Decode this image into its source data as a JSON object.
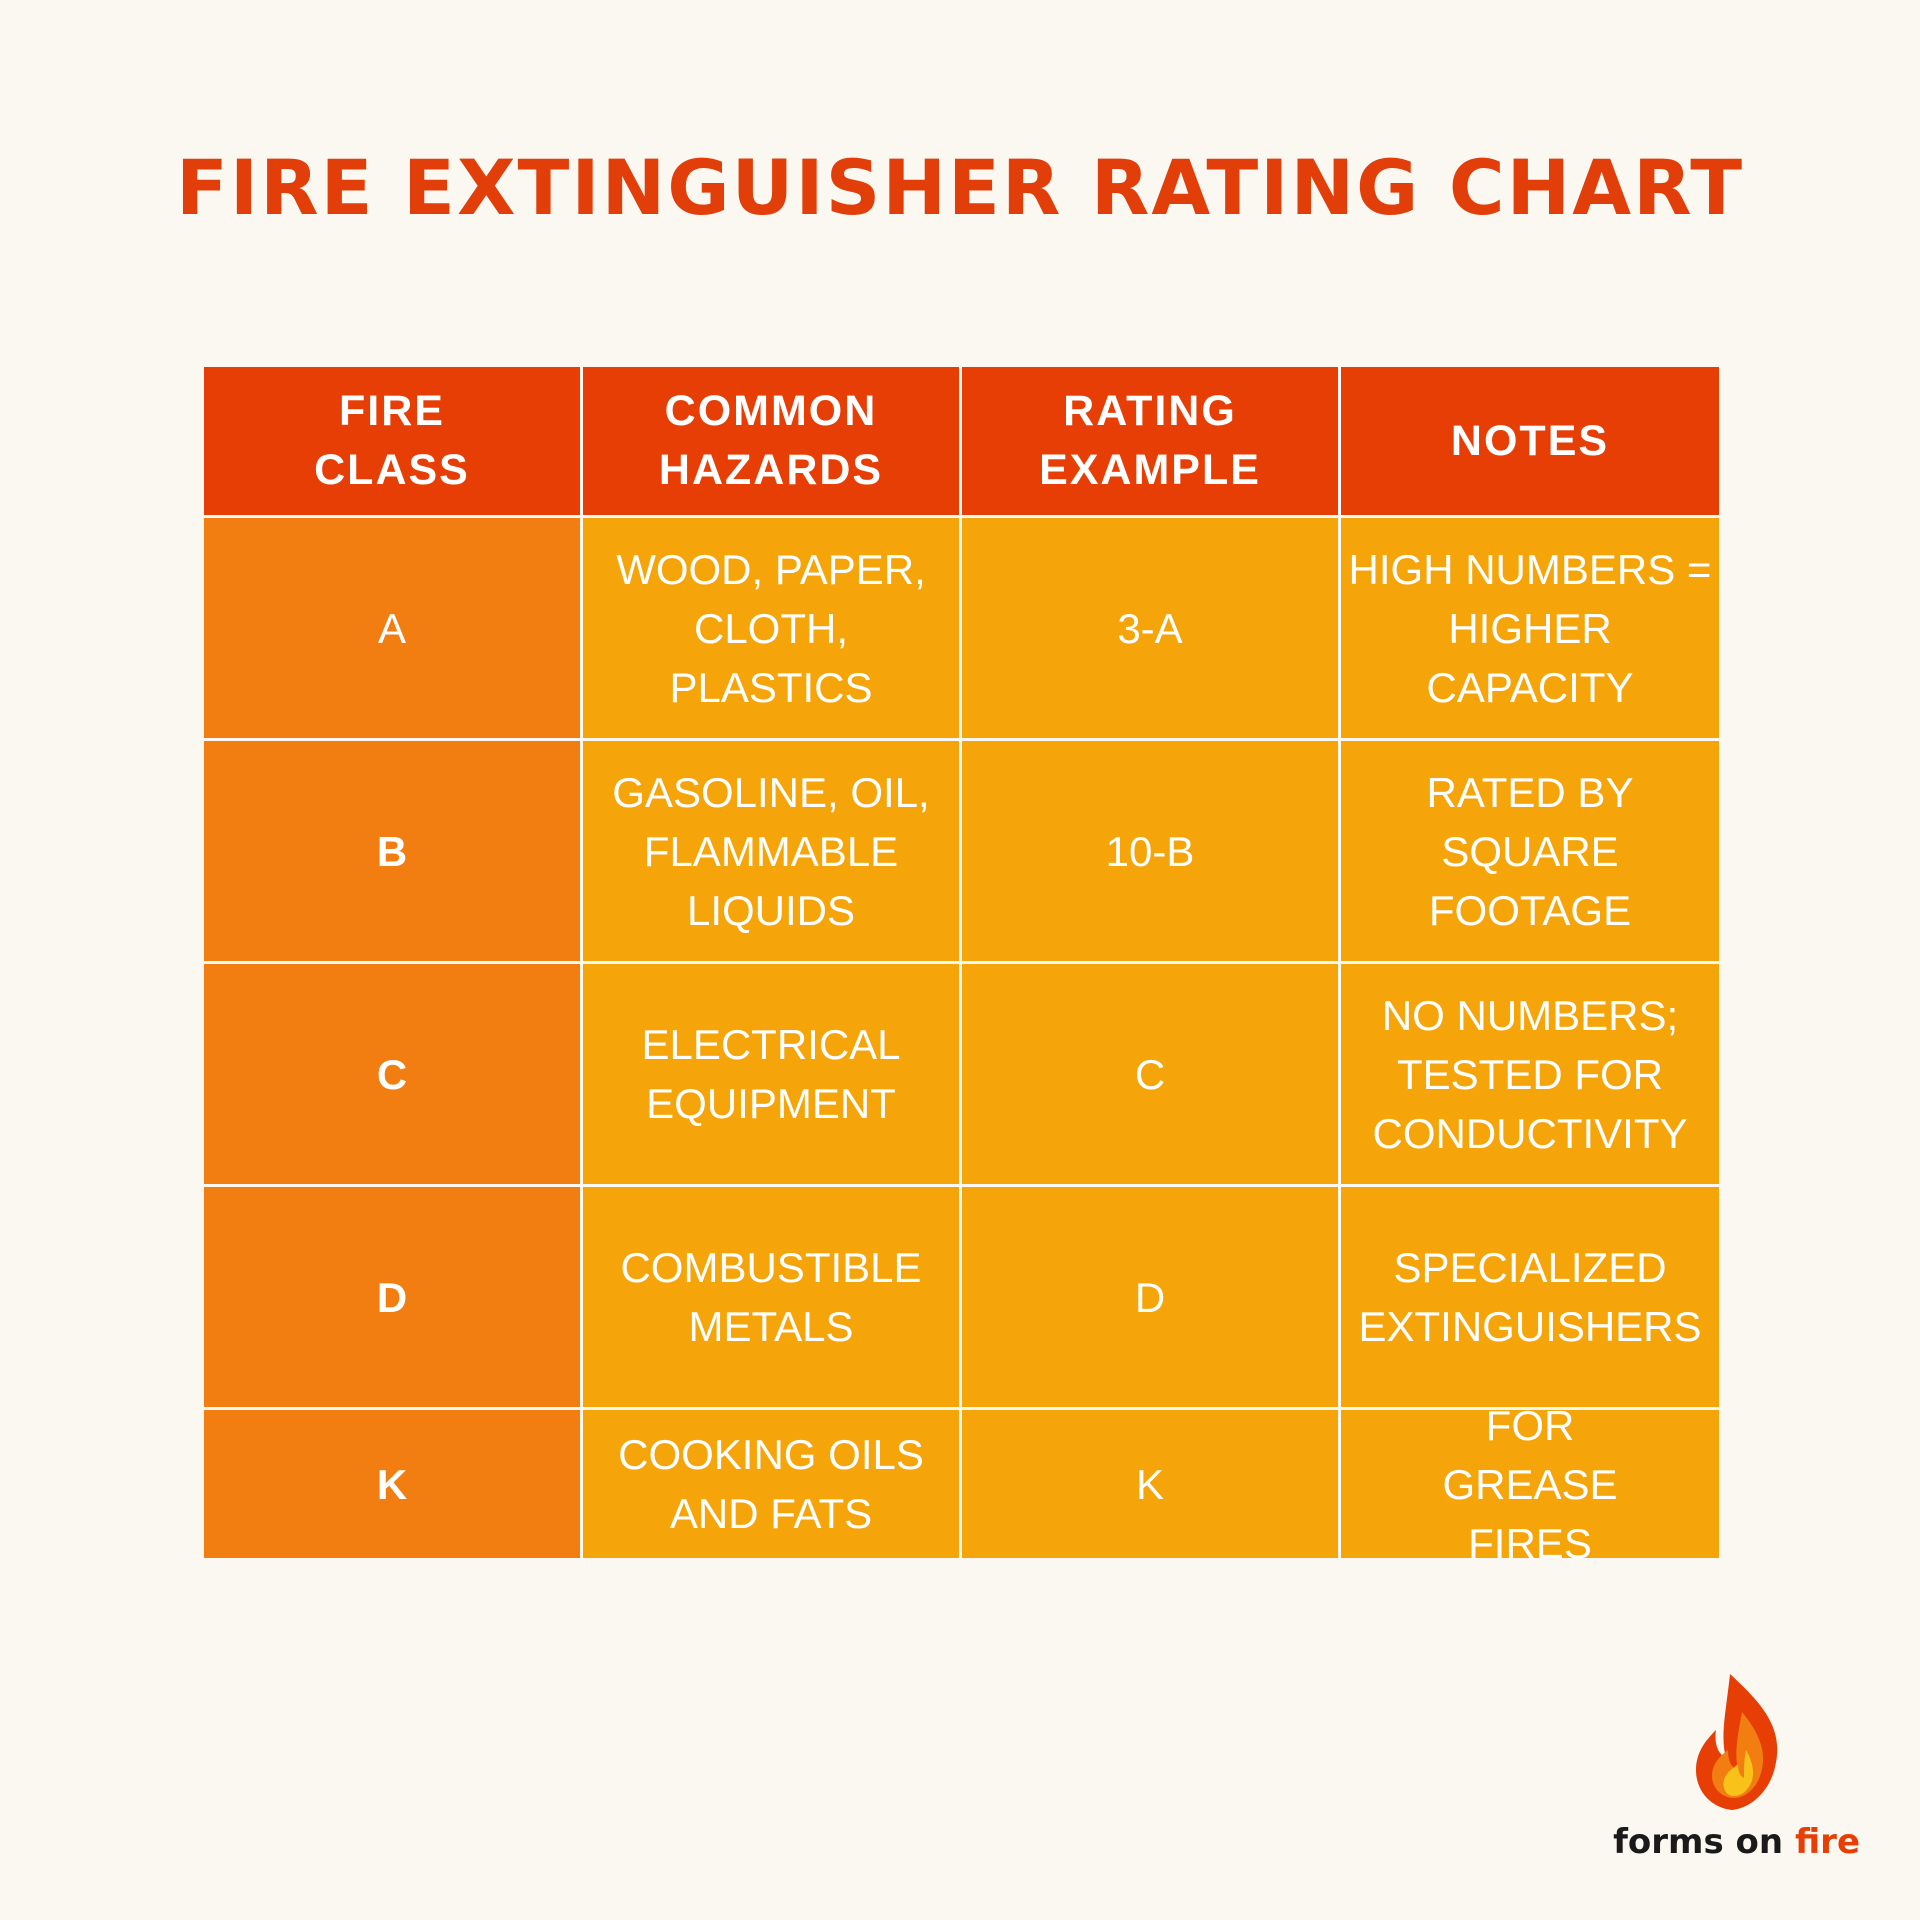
{
  "title": "FIRE EXTINGUISHER RATING CHART",
  "table": {
    "headers": [
      "FIRE CLASS",
      "COMMON HAZARDS",
      "RATING EXAMPLE",
      "NOTES"
    ],
    "rows": [
      {
        "fire_class": "A",
        "hazards": "WOOD, PAPER, CLOTH, PLASTICS",
        "rating": "3-A",
        "notes": "HIGH NUMBERS = HIGHER CAPACITY"
      },
      {
        "fire_class": "B",
        "hazards": "GASOLINE, OIL, FLAMMABLE LIQUIDS",
        "rating": "10-B",
        "notes": "RATED BY SQUARE FOOTAGE"
      },
      {
        "fire_class": "C",
        "hazards": "ELECTRICAL EQUIPMENT",
        "rating": "C",
        "notes": "NO NUMBERS; TESTED FOR CONDUCTIVITY"
      },
      {
        "fire_class": "D",
        "hazards": "COMBUSTIBLE METALS",
        "rating": "D",
        "notes": "SPECIALIZED EXTINGUISHERS"
      },
      {
        "fire_class": "K",
        "hazards": "COOKING OILS AND FATS",
        "rating": "K",
        "notes": "FOR GREASE FIRES"
      }
    ]
  },
  "logo": {
    "text_part1": "forms on ",
    "text_part2": "fire",
    "icon": "flame-icon"
  },
  "colors": {
    "title": "#e23e0a",
    "header_bg": "#e63e05",
    "class_bg": "#f27e12",
    "cell_bg": "#f5a50a",
    "background": "#fbf8f1"
  }
}
